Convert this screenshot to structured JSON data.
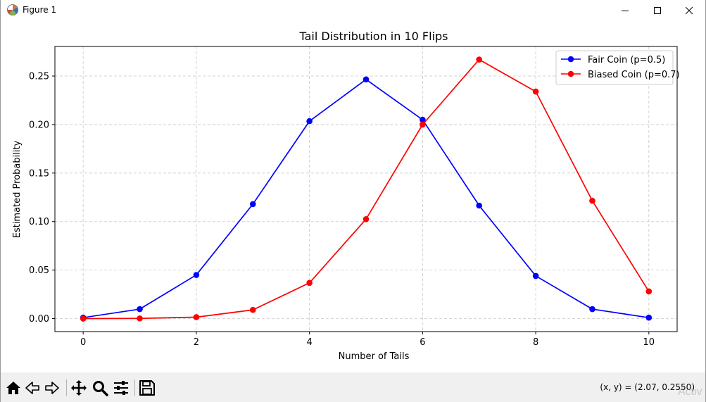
{
  "window": {
    "title": "Figure 1"
  },
  "toolbar": {
    "buttons": [
      {
        "name": "home-icon"
      },
      {
        "name": "back-icon"
      },
      {
        "name": "forward-icon"
      },
      {
        "name": "pan-icon"
      },
      {
        "name": "zoom-icon"
      },
      {
        "name": "configure-subplots-icon"
      },
      {
        "name": "save-icon"
      }
    ],
    "coords": "(x, y) = (2.07, 0.2550)"
  },
  "watermark": "Activ",
  "chart_data": {
    "type": "line",
    "title": "Tail Distribution in 10 Flips",
    "xlabel": "Number of Tails",
    "ylabel": "Estimated Probability",
    "x": [
      0,
      1,
      2,
      3,
      4,
      5,
      6,
      7,
      8,
      9,
      10
    ],
    "xlim": [
      -0.5,
      10.5
    ],
    "ylim": [
      -0.0134,
      0.2805
    ],
    "xticks": [
      0,
      2,
      4,
      6,
      8,
      10
    ],
    "xtick_labels": [
      "0",
      "2",
      "4",
      "6",
      "8",
      "10"
    ],
    "yticks": [
      0.0,
      0.05,
      0.1,
      0.15,
      0.2,
      0.25
    ],
    "ytick_labels": [
      "0.00",
      "0.05",
      "0.10",
      "0.15",
      "0.20",
      "0.25"
    ],
    "grid": true,
    "legend_position": "top-right",
    "series": [
      {
        "name": "Fair Coin (p=0.5)",
        "color": "#0000ff",
        "values": [
          0.001,
          0.0098,
          0.045,
          0.118,
          0.2035,
          0.2465,
          0.205,
          0.1165,
          0.044,
          0.0098,
          0.001
        ]
      },
      {
        "name": "Biased Coin (p=0.7)",
        "color": "#ff0000",
        "values": [
          0.0,
          0.0002,
          0.0015,
          0.009,
          0.0368,
          0.1025,
          0.2,
          0.267,
          0.234,
          0.1215,
          0.028
        ]
      }
    ]
  }
}
